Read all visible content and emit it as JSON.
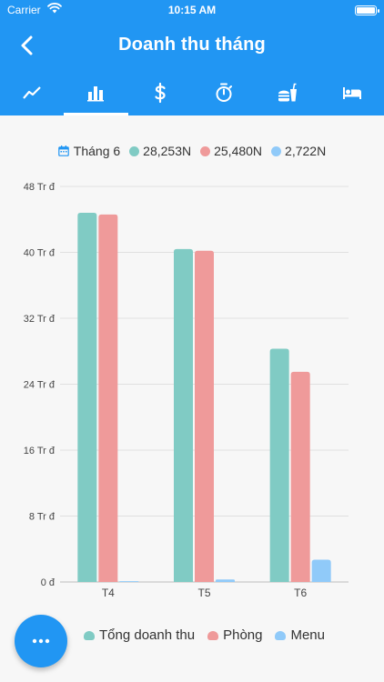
{
  "status_bar": {
    "carrier": "Carrier",
    "time": "10:15 AM"
  },
  "navbar": {
    "title": "Doanh thu tháng",
    "back_icon": "chevron-left-icon"
  },
  "tabs": [
    {
      "icon": "line-chart-icon",
      "active": false
    },
    {
      "icon": "bar-chart-icon",
      "active": true
    },
    {
      "icon": "dollar-icon",
      "active": false
    },
    {
      "icon": "stopwatch-icon",
      "active": false
    },
    {
      "icon": "fastfood-icon",
      "active": false
    },
    {
      "icon": "hotel-bed-icon",
      "active": false
    }
  ],
  "summary": {
    "month": "Tháng 6",
    "total": "28,253N",
    "room": "25,480N",
    "menu": "2,722N"
  },
  "colors": {
    "primary": "#2196f3",
    "total": "#80cbc4",
    "room": "#ef9a9a",
    "menu": "#90caf9"
  },
  "legend": {
    "total": "Tổng doanh thu",
    "room": "Phòng",
    "menu": "Menu"
  },
  "chart_data": {
    "type": "bar",
    "categories": [
      "T4",
      "T5",
      "T6"
    ],
    "series": [
      {
        "name": "Tổng doanh thu",
        "values": [
          44.8,
          40.4,
          28.3
        ]
      },
      {
        "name": "Phòng",
        "values": [
          44.6,
          40.2,
          25.5
        ]
      },
      {
        "name": "Menu",
        "values": [
          0.1,
          0.3,
          2.7
        ]
      }
    ],
    "y_ticks": [
      "0 đ",
      "8 Tr đ",
      "16 Tr đ",
      "24 Tr đ",
      "32 Tr đ",
      "40 Tr đ",
      "48 Tr đ"
    ],
    "ylim": [
      0,
      48
    ],
    "grid": true,
    "legend_position": "bottom"
  }
}
